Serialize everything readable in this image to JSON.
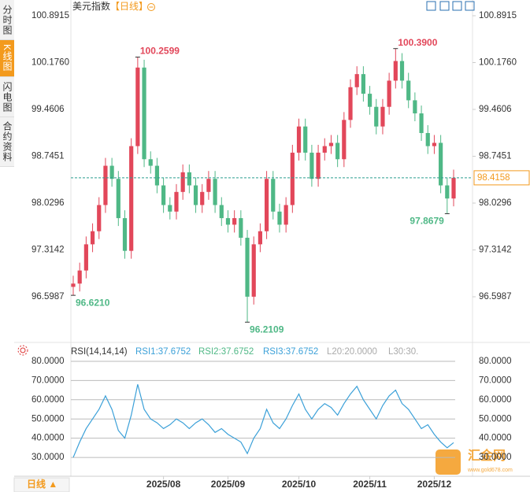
{
  "chart_data": {
    "type": "candlestick",
    "title": "美元指数",
    "period": "【日线】",
    "categories": [
      null,
      null,
      null,
      null,
      null,
      null,
      null,
      null,
      null,
      null,
      null,
      null,
      null,
      null,
      "2025/08",
      null,
      null,
      null,
      null,
      null,
      null,
      null,
      null,
      null,
      "2025/09",
      null,
      null,
      null,
      null,
      null,
      null,
      null,
      null,
      null,
      null,
      "2025/10",
      null,
      null,
      null,
      null,
      null,
      null,
      null,
      null,
      null,
      null,
      "2025/11",
      null,
      null,
      null,
      null,
      null,
      null,
      null,
      null,
      null,
      "2025/12",
      null,
      null,
      null
    ],
    "open": [
      96.75,
      96.8,
      97.0,
      97.4,
      97.6,
      98.0,
      98.6,
      98.4,
      97.8,
      97.3,
      98.9,
      100.1,
      98.7,
      98.6,
      98.3,
      98.0,
      97.9,
      98.2,
      98.5,
      98.3,
      98.0,
      98.2,
      98.4,
      98.0,
      97.8,
      97.7,
      97.8,
      97.5,
      96.6,
      97.4,
      97.6,
      98.4,
      97.9,
      97.7,
      98.0,
      98.8,
      99.2,
      98.8,
      98.4,
      98.8,
      98.9,
      98.95,
      98.7,
      99.3,
      99.8,
      100.0,
      99.7,
      99.5,
      99.2,
      99.5,
      99.9,
      100.2,
      99.9,
      99.6,
      99.4,
      99.1,
      98.9,
      98.95,
      98.3,
      98.1
    ],
    "high": [
      96.92,
      97.12,
      97.52,
      97.72,
      98.12,
      98.72,
      98.72,
      98.52,
      97.92,
      99.02,
      100.2599,
      100.22,
      98.82,
      98.72,
      98.42,
      98.12,
      98.32,
      98.62,
      98.62,
      98.42,
      98.32,
      98.52,
      98.52,
      98.12,
      97.92,
      97.92,
      97.92,
      97.62,
      97.52,
      97.72,
      98.52,
      98.52,
      98.02,
      98.12,
      98.92,
      99.32,
      99.32,
      98.92,
      98.92,
      99.02,
      99.07,
      99.07,
      99.42,
      99.92,
      100.12,
      100.12,
      99.82,
      99.62,
      99.62,
      100.02,
      100.39,
      100.32,
      100.02,
      99.72,
      99.52,
      99.22,
      99.07,
      99.07,
      98.42,
      98.54
    ],
    "low": [
      96.621,
      96.68,
      96.88,
      97.28,
      97.48,
      97.88,
      98.28,
      97.68,
      97.18,
      97.18,
      98.78,
      98.58,
      98.48,
      98.18,
      97.88,
      97.78,
      97.78,
      98.08,
      98.18,
      97.88,
      97.88,
      98.08,
      97.88,
      97.68,
      97.58,
      97.58,
      97.38,
      96.2109,
      96.48,
      97.28,
      97.48,
      97.78,
      97.58,
      97.58,
      97.88,
      98.68,
      98.68,
      98.28,
      98.28,
      98.68,
      98.78,
      98.58,
      98.58,
      99.18,
      99.68,
      99.58,
      99.38,
      99.08,
      99.08,
      99.38,
      99.78,
      99.78,
      99.48,
      99.28,
      98.98,
      98.78,
      98.78,
      98.18,
      97.8679,
      97.98
    ],
    "close": [
      96.8,
      97.0,
      97.4,
      97.6,
      98.0,
      98.6,
      98.4,
      97.8,
      97.3,
      98.9,
      100.1,
      98.7,
      98.6,
      98.3,
      98.0,
      97.9,
      98.2,
      98.5,
      98.3,
      98.0,
      98.2,
      98.4,
      98.0,
      97.8,
      97.7,
      97.8,
      97.5,
      96.6,
      97.4,
      97.6,
      98.4,
      97.9,
      97.7,
      98.0,
      98.8,
      99.2,
      98.8,
      98.4,
      98.8,
      98.9,
      98.95,
      98.7,
      99.3,
      99.8,
      100.0,
      99.7,
      99.5,
      99.2,
      99.5,
      99.9,
      100.2,
      99.9,
      99.6,
      99.4,
      99.1,
      98.9,
      98.95,
      98.3,
      98.1,
      98.4158
    ],
    "annotations": [
      "100.2599",
      "96.6210",
      "96.2109",
      "100.3900",
      "97.8679"
    ],
    "up_color": "#e2475a",
    "down_color": "#4fb886",
    "ylim": [
      95.9614,
      101.0358
    ],
    "yticks": [
      100.8915,
      {
        "value": 100.176,
        "label": "100.1760"
      },
      99.4606,
      98.7451,
      98.0296,
      97.3142,
      96.5987
    ],
    "rsi": {
      "title": "RSI(14,14,14)",
      "legend": [
        "RSI1:37.6752",
        "RSI2:37.6752",
        "RSI3:37.6752",
        "L20:20.0000",
        "L30:30."
      ],
      "color": "#3ba0d8",
      "values": [
        30,
        38,
        45,
        50,
        55,
        62,
        55,
        44,
        40,
        52,
        68,
        55,
        50,
        48,
        45,
        47,
        50,
        48,
        45,
        48,
        50,
        47,
        43,
        45,
        42,
        40,
        38,
        32,
        40,
        45,
        55,
        48,
        45,
        50,
        57,
        63,
        55,
        50,
        55,
        58,
        56,
        52,
        58,
        63,
        67,
        60,
        55,
        50,
        57,
        62,
        65,
        58,
        55,
        50,
        45,
        47,
        42,
        38,
        35,
        37.6752
      ],
      "ylim": [
        20.2,
        87.76
      ],
      "yticks": [
        {
          "value": 80,
          "label": "80.0000"
        },
        {
          "value": 70,
          "label": "70.0000"
        },
        {
          "value": 60,
          "label": "60.0000"
        },
        {
          "value": 50,
          "label": "50.0000"
        },
        {
          "value": 40,
          "label": "40.0000"
        },
        {
          "value": 30,
          "label": "30.0000"
        }
      ]
    },
    "period_tab": "日线 ▲",
    "sidebar": [
      "分时图",
      "K线图",
      "闪电图",
      "合约资料"
    ],
    "watermark": "汇金网",
    "watermark_url": "www.gold678.com"
  }
}
